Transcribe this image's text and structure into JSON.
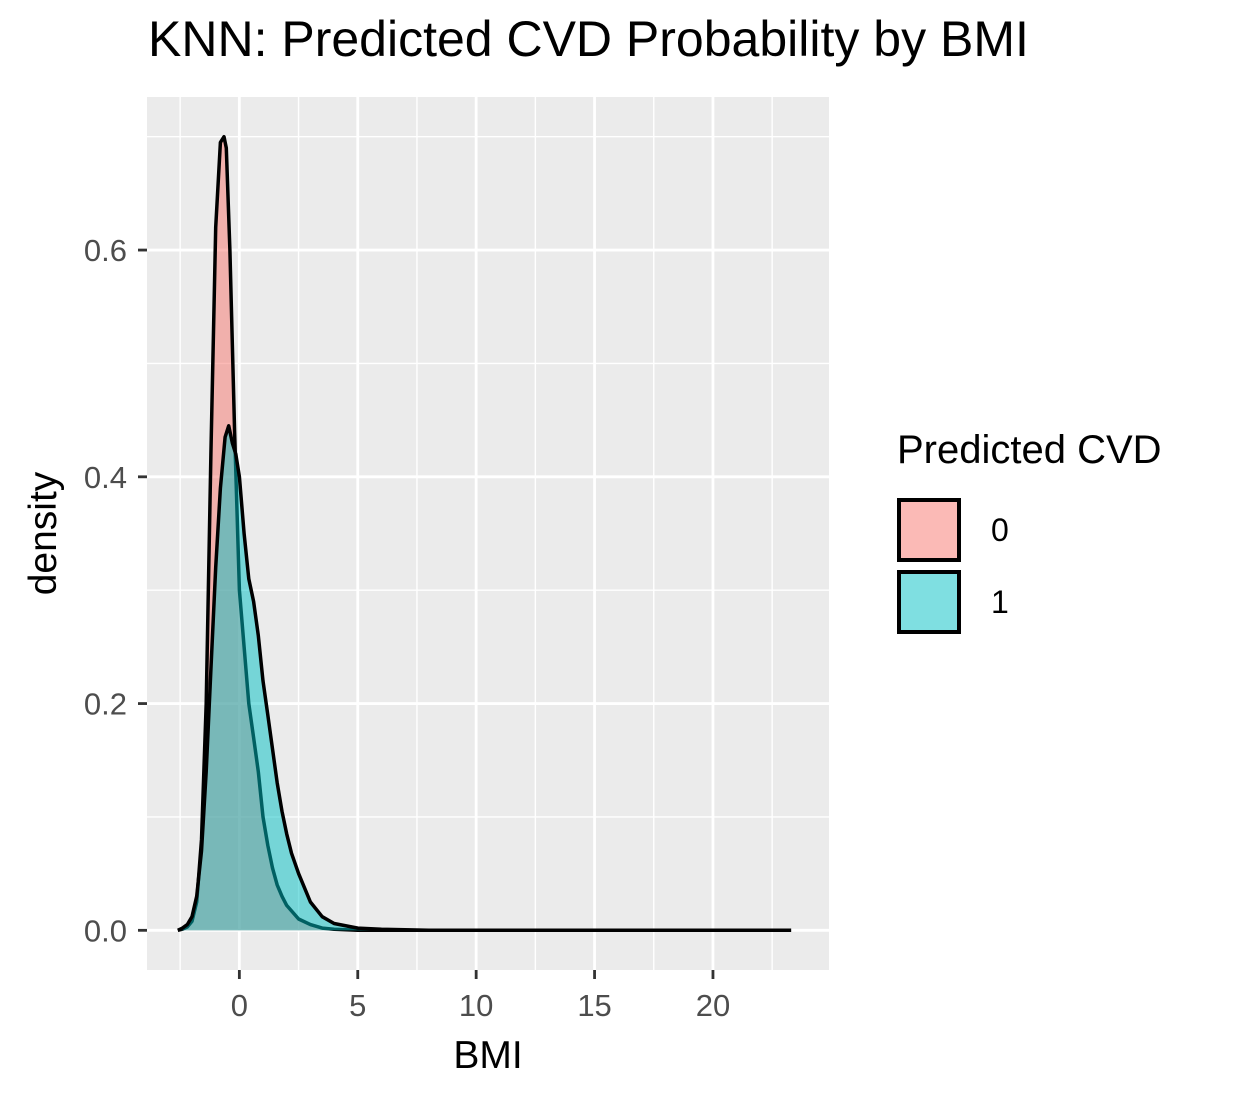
{
  "chart_data": {
    "type": "area",
    "title": "KNN: Predicted CVD Probability by BMI",
    "xlabel": "BMI",
    "ylabel": "density",
    "xlim": [
      -3.9,
      24.9
    ],
    "ylim": [
      -0.035,
      0.735
    ],
    "x_ticks": [
      0,
      5,
      10,
      15,
      20
    ],
    "y_ticks": [
      0.0,
      0.2,
      0.4,
      0.6
    ],
    "y_tick_labels": [
      "0.0",
      "0.2",
      "0.4",
      "0.6"
    ],
    "x_tick_labels": [
      "0",
      "5",
      "10",
      "15",
      "20"
    ],
    "grid": true,
    "legend": {
      "title": "Predicted CVD",
      "position": "right"
    },
    "series": [
      {
        "name": "0",
        "color": "#F8766D",
        "x": [
          -2.6,
          -2.4,
          -2.2,
          -2.0,
          -1.8,
          -1.6,
          -1.4,
          -1.2,
          -1.0,
          -0.8,
          -0.65,
          -0.55,
          -0.4,
          -0.2,
          0.0,
          0.2,
          0.4,
          0.6,
          0.8,
          1.0,
          1.2,
          1.4,
          1.6,
          1.8,
          2.0,
          2.5,
          3.0,
          3.5,
          4.0,
          5.0,
          6.0,
          8.0,
          23.3
        ],
        "values": [
          0.0,
          0.001,
          0.003,
          0.008,
          0.025,
          0.08,
          0.2,
          0.42,
          0.62,
          0.695,
          0.7,
          0.69,
          0.6,
          0.44,
          0.3,
          0.25,
          0.2,
          0.17,
          0.14,
          0.1,
          0.075,
          0.055,
          0.04,
          0.03,
          0.022,
          0.01,
          0.005,
          0.002,
          0.001,
          0.0,
          0.0,
          0.0,
          0.0
        ]
      },
      {
        "name": "1",
        "color": "#00BFC4",
        "x": [
          -2.6,
          -2.4,
          -2.2,
          -2.0,
          -1.8,
          -1.6,
          -1.4,
          -1.2,
          -1.0,
          -0.8,
          -0.6,
          -0.45,
          -0.3,
          -0.15,
          0.0,
          0.2,
          0.4,
          0.6,
          0.8,
          1.0,
          1.2,
          1.4,
          1.6,
          1.8,
          2.0,
          2.2,
          2.5,
          3.0,
          3.5,
          4.0,
          5.0,
          6.0,
          8.0,
          23.3
        ],
        "values": [
          0.0,
          0.002,
          0.005,
          0.012,
          0.03,
          0.07,
          0.14,
          0.23,
          0.32,
          0.39,
          0.435,
          0.445,
          0.43,
          0.42,
          0.4,
          0.35,
          0.31,
          0.29,
          0.26,
          0.22,
          0.19,
          0.16,
          0.13,
          0.105,
          0.085,
          0.068,
          0.05,
          0.025,
          0.012,
          0.006,
          0.002,
          0.001,
          0.0,
          0.0
        ]
      }
    ]
  }
}
